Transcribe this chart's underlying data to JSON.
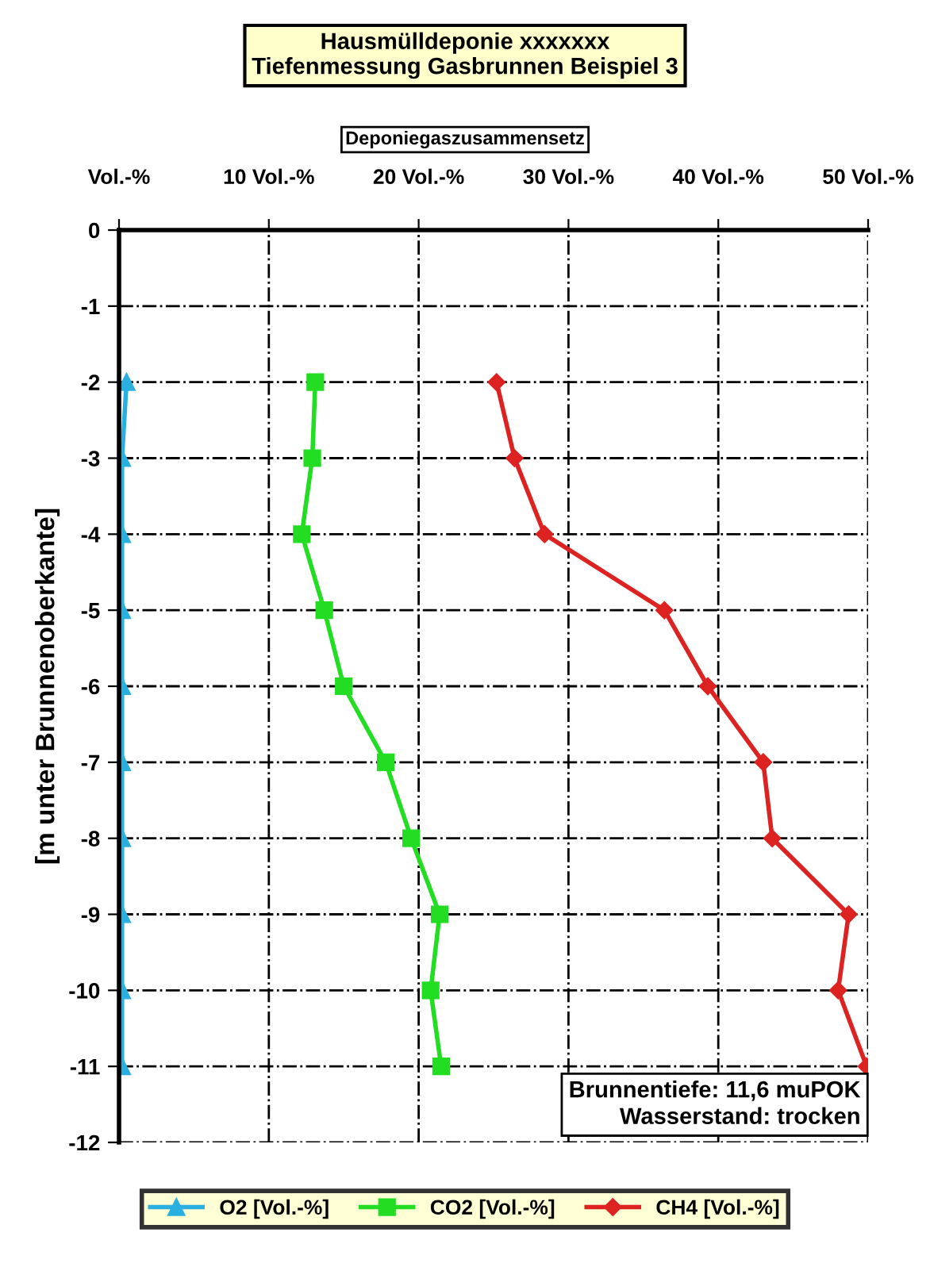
{
  "chart_data": {
    "type": "line",
    "title": "Hausmülldeponie xxxxxxx\nTiefenmessung Gasbrunnen Beispiel 3",
    "subtitle": "Deponiegaszusammensetz",
    "ylabel": "[m unter Brunnenoberkante]",
    "xlim": [
      0,
      50
    ],
    "xticks": [
      {
        "value": 0,
        "label": "Vol.-%"
      },
      {
        "value": 10,
        "label": "10 Vol.-%"
      },
      {
        "value": 20,
        "label": "20 Vol.-%"
      },
      {
        "value": 30,
        "label": "30 Vol.-%"
      },
      {
        "value": 40,
        "label": "40 Vol.-%"
      },
      {
        "value": 50,
        "label": "50 Vol.-%"
      }
    ],
    "ylim": [
      -12,
      0
    ],
    "yticks": [
      0,
      -1,
      -2,
      -3,
      -4,
      -5,
      -6,
      -7,
      -8,
      -9,
      -10,
      -11,
      -12
    ],
    "grid": true,
    "legend": "bottom",
    "line_style": "solid",
    "annotations": [
      "Brunnentiefe: 11,6 muPOK\nWasserstand: trocken"
    ],
    "series": [
      {
        "name": "O2 [Vol.-%]",
        "color": "#2ab0e0",
        "marker": "triangle",
        "x": [
          0.5,
          0.2,
          0.2,
          0.2,
          0.2,
          0.2,
          0.2,
          0.2,
          0.2,
          0.2
        ],
        "values": [
          -2,
          -3,
          -4,
          -5,
          -6,
          -7,
          -8,
          -9,
          -10,
          -11
        ]
      },
      {
        "name": "CO2 [Vol.-%]",
        "color": "#22dd22",
        "marker": "square",
        "x": [
          13.1,
          12.9,
          12.2,
          13.7,
          15.0,
          17.8,
          19.5,
          21.4,
          20.8,
          21.5
        ],
        "values": [
          -2,
          -3,
          -4,
          -5,
          -6,
          -7,
          -8,
          -9,
          -10,
          -11
        ]
      },
      {
        "name": "CH4 [Vol.-%]",
        "color": "#dd2222",
        "marker": "diamond",
        "x": [
          25.2,
          26.4,
          28.4,
          36.4,
          39.3,
          43.0,
          43.6,
          48.7,
          48.0,
          49.9
        ],
        "values": [
          -2,
          -3,
          -4,
          -5,
          -6,
          -7,
          -8,
          -9,
          -10,
          -11
        ]
      }
    ]
  }
}
